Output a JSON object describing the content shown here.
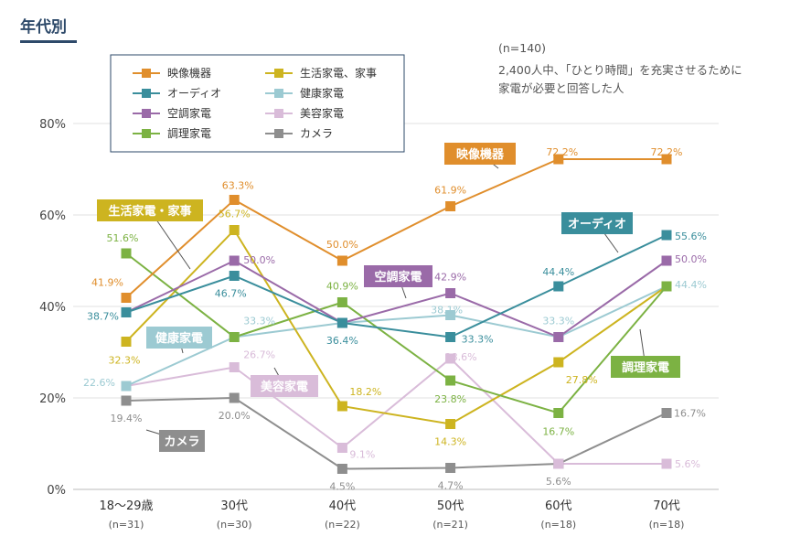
{
  "page_title": "年代別",
  "note": {
    "sample": "(n=140)",
    "line1": "2,400人中、「ひとり時間」を充実させるために",
    "line2": "家電が必要と回答した人"
  },
  "chart_data": {
    "type": "line",
    "title": "年代別",
    "xlabel": "",
    "ylabel": "",
    "ylim": [
      0,
      80
    ],
    "yticks": [
      0,
      20,
      40,
      60,
      80
    ],
    "ytick_labels": [
      "0%",
      "20%",
      "40%",
      "60%",
      "80%"
    ],
    "grid": true,
    "legend_position": "top-left",
    "categories": [
      "18〜29歳",
      "30代",
      "40代",
      "50代",
      "60代",
      "70代"
    ],
    "sample_sizes": [
      "(n=31)",
      "(n=30)",
      "(n=22)",
      "(n=21)",
      "(n=18)",
      "(n=18)"
    ],
    "series": [
      {
        "name": "映像機器",
        "color": "#e08e2c",
        "values": [
          41.9,
          63.3,
          50.0,
          61.9,
          72.2,
          72.2
        ],
        "labels": [
          "41.9%",
          "63.3%",
          "50.0%",
          "61.9%",
          "72.2%",
          "72.2%"
        ],
        "callout": "映像機器"
      },
      {
        "name": "オーディオ",
        "color": "#3a8e9c",
        "values": [
          38.7,
          46.7,
          36.4,
          33.3,
          44.4,
          55.6
        ],
        "labels": [
          "38.7%",
          "46.7%",
          "36.4%",
          "33.3%",
          "44.4%",
          "55.6%"
        ],
        "callout": "オーディオ"
      },
      {
        "name": "空調家電",
        "color": "#9a6aa8",
        "values": [
          38.7,
          50.0,
          36.4,
          42.9,
          33.3,
          50.0
        ],
        "labels": [
          "",
          "50.0%",
          "",
          "42.9%",
          "",
          "50.0%"
        ],
        "callout": "空調家電"
      },
      {
        "name": "調理家電",
        "color": "#7cb243",
        "values": [
          51.6,
          33.3,
          40.9,
          23.8,
          16.7,
          44.4
        ],
        "labels": [
          "51.6%",
          "",
          "40.9%",
          "23.8%",
          "16.7%",
          ""
        ],
        "callout": "調理家電"
      },
      {
        "name": "生活家電、家事",
        "color": "#cdb420",
        "values": [
          32.3,
          56.7,
          18.2,
          14.3,
          27.8,
          44.4
        ],
        "labels": [
          "32.3%",
          "56.7%",
          "18.2%",
          "14.3%",
          "27.8%",
          ""
        ],
        "callout": "生活家電・家事"
      },
      {
        "name": "健康家電",
        "color": "#9ccad2",
        "values": [
          22.6,
          33.3,
          36.4,
          38.1,
          33.3,
          44.4
        ],
        "labels": [
          "22.6%",
          "33.3%",
          "",
          "38.1%",
          "33.3%",
          "44.4%"
        ],
        "callout": "健康家電"
      },
      {
        "name": "美容家電",
        "color": "#d9bcd9",
        "values": [
          22.6,
          26.7,
          9.1,
          28.6,
          5.6,
          5.6
        ],
        "labels": [
          "",
          "26.7%",
          "9.1%",
          "28.6%",
          "",
          "5.6%"
        ],
        "callout": "美容家電"
      },
      {
        "name": "カメラ",
        "color": "#8e8e8e",
        "values": [
          19.4,
          20.0,
          4.5,
          4.7,
          5.6,
          16.7
        ],
        "labels": [
          "19.4%",
          "20.0%",
          "4.5%",
          "4.7%",
          "5.6%",
          "16.7%"
        ],
        "callout": "カメラ"
      }
    ]
  }
}
